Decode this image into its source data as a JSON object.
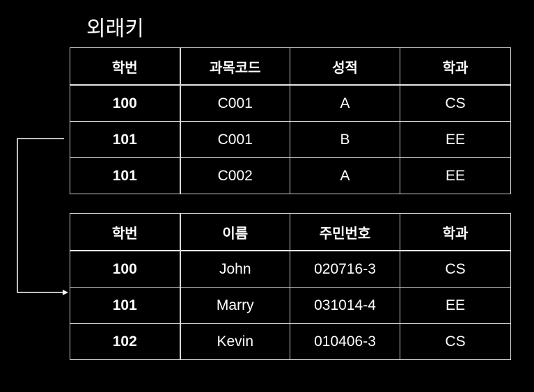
{
  "title": "외래키",
  "top_table": {
    "headers": [
      "학번",
      "과목코드",
      "성적",
      "학과"
    ],
    "rows": [
      [
        "100",
        "C001",
        "A",
        "CS"
      ],
      [
        "101",
        "C001",
        "B",
        "EE"
      ],
      [
        "101",
        "C002",
        "A",
        "EE"
      ]
    ]
  },
  "bottom_table": {
    "headers": [
      "학번",
      "이름",
      "주민번호",
      "학과"
    ],
    "rows": [
      [
        "100",
        "John",
        "020716-3",
        "CS"
      ],
      [
        "101",
        "Marry",
        "031014-4",
        "EE"
      ],
      [
        "102",
        "Kevin",
        "010406-3",
        "CS"
      ]
    ]
  },
  "colors": {
    "background": "#000000",
    "foreground": "#ffffff",
    "border": "#cfcfcf"
  }
}
